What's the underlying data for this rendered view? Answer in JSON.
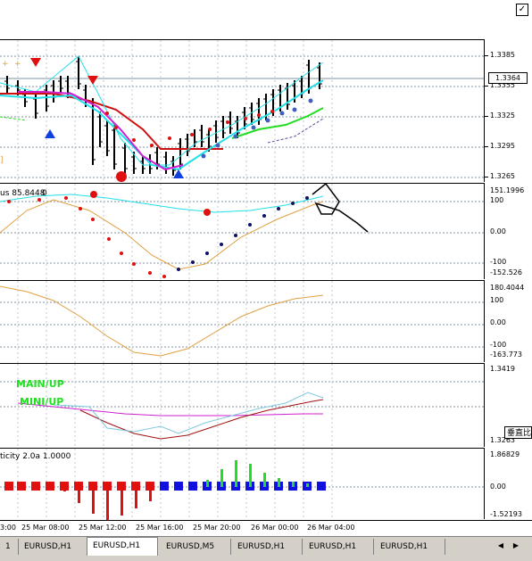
{
  "window": {
    "top_right_glyph": "✓"
  },
  "main_pane": {
    "axis_labels": [
      "1.3385",
      "1.3355",
      "1.3325",
      "1.3295",
      "1.3265"
    ],
    "current_price": "1.3364",
    "left_labels": [
      "+",
      "+",
      "]"
    ]
  },
  "pane2": {
    "title": "us 85.8448",
    "title_tail": "0",
    "axis_labels": [
      "151.1996",
      "100",
      "0.00",
      "-100",
      "-152.526"
    ]
  },
  "pane3": {
    "axis_labels": [
      "180.4044",
      "100",
      "0.00",
      "-100",
      "-163.773"
    ]
  },
  "pane4": {
    "main_label": "MAIN/UP",
    "mini_label": "MINI/UP",
    "axis_labels": [
      "1.3419",
      "1.3263"
    ],
    "side_label": "垂直比"
  },
  "pane5": {
    "title": "ticity 2.0a 1.0000",
    "axis_labels": [
      "1.86829",
      "0.00",
      "-1.52193"
    ]
  },
  "time_axis": [
    "3:00",
    "25 Mar 08:00",
    "25 Mar 12:00",
    "25 Mar 16:00",
    "25 Mar 20:00",
    "26 Mar 00:00",
    "26 Mar 04:00"
  ],
  "tabs": [
    {
      "label": "1",
      "active": false
    },
    {
      "label": "EURUSD,H1",
      "active": false
    },
    {
      "label": "EURUSD,H1",
      "active": true
    },
    {
      "label": "EURUSD,M5",
      "active": false
    },
    {
      "label": "EURUSD,H1",
      "active": false
    },
    {
      "label": "EURUSD,H1",
      "active": false
    },
    {
      "label": "EURUSD,H1",
      "active": false
    }
  ],
  "scroll": {
    "left": "◀",
    "right": "▶"
  },
  "colors": {
    "red_line": "#d01010",
    "cyan": "#22e0e8",
    "magenta": "#d020d0",
    "green": "#22dd22",
    "navy": "#101060",
    "orange": "#e0a040",
    "blue_bar": "#1010e0",
    "red_bar": "#e01010"
  }
}
